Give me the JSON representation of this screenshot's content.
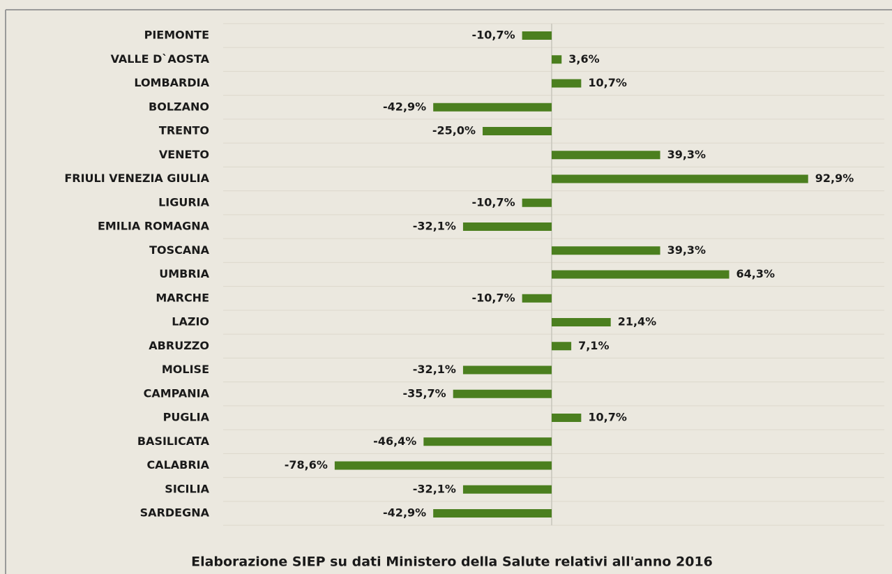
{
  "chart_data": {
    "type": "bar",
    "orientation": "horizontal",
    "categories": [
      "PIEMONTE",
      "VALLE D`AOSTA",
      "LOMBARDIA",
      "BOLZANO",
      "TRENTO",
      "VENETO",
      "FRIULI VENEZIA GIULIA",
      "LIGURIA",
      "EMILIA ROMAGNA",
      "TOSCANA",
      "UMBRIA",
      "MARCHE",
      "LAZIO",
      "ABRUZZO",
      "MOLISE",
      "CAMPANIA",
      "PUGLIA",
      "BASILICATA",
      "CALABRIA",
      "SICILIA",
      "SARDEGNA"
    ],
    "values": [
      -10.7,
      3.6,
      10.7,
      -42.9,
      -25.0,
      39.3,
      92.9,
      -10.7,
      -32.1,
      39.3,
      64.3,
      -10.7,
      21.4,
      7.1,
      -32.1,
      -35.7,
      10.7,
      -46.4,
      -78.6,
      -32.1,
      -42.9
    ],
    "value_labels": [
      "-10,7%",
      "3,6%",
      "10,7%",
      "-42,9%",
      "-25,0%",
      "39,3%",
      "92,9%",
      "-10,7%",
      "-32,1%",
      "39,3%",
      "64,3%",
      "-10,7%",
      "21,4%",
      "7,1%",
      "-32,1%",
      "-35,7%",
      "10,7%",
      "-46,4%",
      "-78,6%",
      "-32,1%",
      "-42,9%"
    ],
    "color": "#4b7f1f",
    "xlim": [
      -120,
      120
    ],
    "source": "Elaborazione SIEP su dati Ministero della Salute relativi all'anno 2016"
  }
}
